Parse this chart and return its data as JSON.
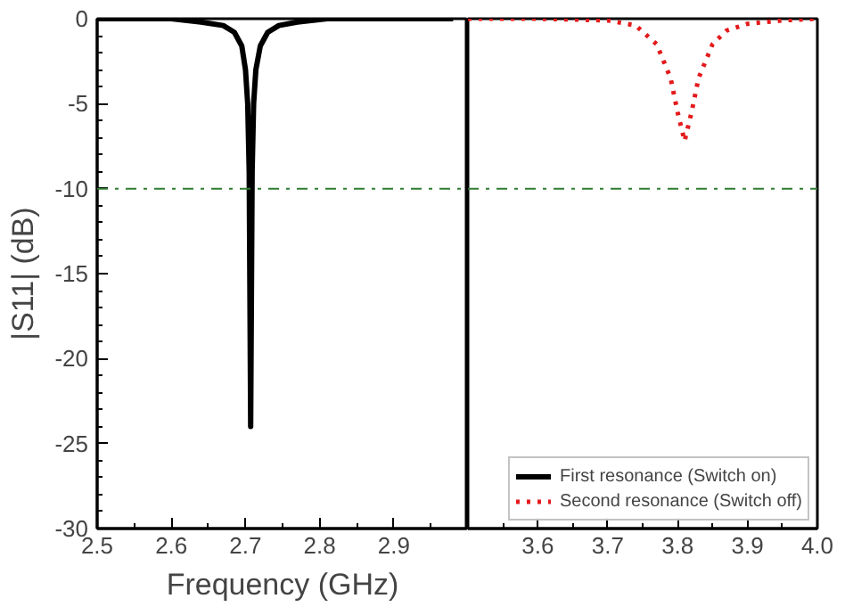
{
  "chart_data": [
    {
      "type": "line",
      "xlabel": "Frequency (GHz)",
      "ylabel": "|S11| (dB)",
      "xlim": [
        2.5,
        3.0
      ],
      "xticks": [
        2.5,
        2.6,
        2.7,
        2.8,
        2.9
      ],
      "ylim": [
        -30,
        0
      ],
      "yticks": [
        0,
        -5,
        -10,
        -15,
        -20,
        -25,
        -30
      ],
      "grid": false,
      "legend": "bottom right",
      "ref_lines": [
        {
          "axis": "y",
          "value": -10,
          "color": "#2e7d32",
          "line_style": "dashdot"
        }
      ],
      "series": [
        {
          "name": "First resonance (Switch on)",
          "color": "#000000",
          "line_style": "solid",
          "x": [
            2.5,
            2.6,
            2.64,
            2.67,
            2.685,
            2.695,
            2.7,
            2.703,
            2.705,
            2.707,
            2.709,
            2.711,
            2.714,
            2.72,
            2.73,
            2.745,
            2.77,
            2.81,
            2.9,
            2.98
          ],
          "values": [
            0,
            0,
            -0.2,
            -0.4,
            -0.8,
            -1.6,
            -3,
            -5,
            -9,
            -24,
            -9,
            -5,
            -3,
            -1.6,
            -0.8,
            -0.4,
            -0.2,
            0,
            0,
            0
          ]
        }
      ]
    },
    {
      "type": "line",
      "xlim": [
        3.5,
        4.0
      ],
      "xticks": [
        3.6,
        3.7,
        3.8,
        3.9,
        {
          "value": 4.0,
          "label": "4.0"
        }
      ],
      "ylim": [
        -30,
        0
      ],
      "tick_labels": "x",
      "grid": false,
      "legend": "bottom right",
      "ref_lines": [
        {
          "axis": "y",
          "value": -10,
          "color": "#2e7d32",
          "line_style": "dashdot"
        }
      ],
      "series": [
        {
          "name": "Second resonance (Switch off)",
          "color": "#e31a1c",
          "line_style": "dotted",
          "x": [
            3.5,
            3.6,
            3.7,
            3.74,
            3.77,
            3.79,
            3.8,
            3.81,
            3.82,
            3.83,
            3.85,
            3.87,
            3.9,
            3.95,
            4.0
          ],
          "values": [
            0,
            0,
            -0.1,
            -0.4,
            -1.5,
            -3.5,
            -5.5,
            -7.2,
            -5.5,
            -3.5,
            -1.5,
            -0.7,
            -0.3,
            -0.1,
            0
          ]
        }
      ]
    }
  ]
}
